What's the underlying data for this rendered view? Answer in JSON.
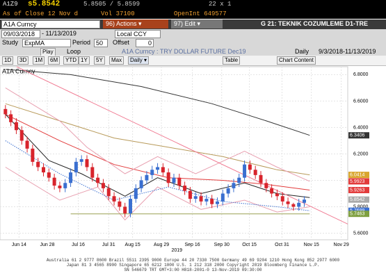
{
  "header": {
    "ticker": "A1Z9",
    "last": "s5.8542",
    "bid_ask": "5.8505 / 5.8599",
    "size": "22 x 1",
    "as_of": "As of Close 12 Nov d",
    "vol": "Vol 37100",
    "open_int": "OpenInt 649577"
  },
  "toolbar": {
    "security": "A1A Curncy",
    "actions": "96) Actions ▾",
    "edit": "97) Edit ▾",
    "page_title": "G 21: TEKNIK COZUMLEME D1-TRE",
    "start_date": "09/03/2018",
    "end_date": "- 11/13/2019",
    "currency": "Local CCY",
    "study_label": "Study",
    "study": "ExpMA",
    "period_label": "Period",
    "period": "50",
    "offset_label": "Offset",
    "offset": "0",
    "play": "Play",
    "loop": "Loop",
    "chart_name": "A1A Curncy : TRY DOLLAR FUTURE Dec19",
    "frequency": "Daily",
    "range": "9/3/2018-11/13/2019",
    "periods": [
      "1D",
      "3D",
      "1M",
      "6M",
      "YTD",
      "1Y",
      "5Y",
      "Max"
    ],
    "period_select": "Daily ▾",
    "table": "Table",
    "chart_content": "Chart Content"
  },
  "chart_data": {
    "type": "candlestick",
    "title": "A1A Curncy",
    "year_label": "2019",
    "up_color": "#3a6fd0",
    "down_color": "#d8242c",
    "open": [
      6.54,
      6.5,
      6.44,
      6.38,
      6.3,
      6.24,
      6.14,
      6.1,
      6.06,
      6.02,
      5.96,
      5.94,
      5.98,
      6.06,
      6.14,
      6.16,
      6.1,
      6.02,
      5.98,
      5.94,
      5.88,
      5.84,
      5.8,
      5.75,
      5.86,
      5.94,
      6.0,
      6.04,
      6.08,
      6.1,
      6.06,
      5.98,
      6.02,
      5.96,
      5.92,
      5.86,
      5.88,
      5.84,
      5.86,
      5.82,
      5.84,
      5.9,
      5.94,
      5.98,
      6.02,
      6.12,
      6.08,
      6.04,
      5.98,
      5.94,
      5.9,
      5.88,
      5.84,
      5.82,
      5.8,
      5.83
    ],
    "high": [
      6.57,
      6.53,
      6.47,
      6.41,
      6.33,
      6.27,
      6.17,
      6.13,
      6.09,
      6.05,
      5.99,
      6.01,
      6.09,
      6.17,
      6.19,
      6.19,
      6.13,
      6.05,
      6.01,
      5.97,
      5.91,
      5.87,
      5.83,
      5.89,
      5.97,
      6.03,
      6.07,
      6.11,
      6.13,
      6.13,
      6.09,
      6.05,
      6.05,
      5.99,
      5.95,
      5.91,
      5.91,
      5.89,
      5.89,
      5.87,
      5.93,
      5.97,
      6.01,
      6.05,
      6.15,
      6.15,
      6.11,
      6.07,
      6.01,
      5.97,
      5.93,
      5.91,
      5.87,
      5.83,
      5.86,
      5.88
    ],
    "low": [
      6.47,
      6.41,
      6.35,
      6.27,
      6.21,
      6.11,
      6.07,
      6.03,
      5.99,
      5.93,
      5.91,
      5.91,
      5.95,
      6.03,
      6.11,
      6.07,
      5.99,
      5.95,
      5.91,
      5.85,
      5.81,
      5.77,
      5.72,
      5.72,
      5.83,
      5.91,
      5.97,
      6.01,
      6.05,
      6.03,
      5.95,
      5.95,
      5.93,
      5.89,
      5.83,
      5.83,
      5.81,
      5.81,
      5.79,
      5.79,
      5.81,
      5.87,
      5.91,
      5.95,
      5.99,
      6.05,
      6.01,
      5.95,
      5.91,
      5.87,
      5.85,
      5.81,
      5.79,
      5.77,
      5.77,
      5.8
    ],
    "close": [
      6.5,
      6.44,
      6.38,
      6.3,
      6.24,
      6.14,
      6.1,
      6.06,
      6.02,
      5.96,
      5.94,
      5.98,
      6.06,
      6.14,
      6.16,
      6.1,
      6.02,
      5.98,
      5.94,
      5.88,
      5.84,
      5.8,
      5.75,
      5.86,
      5.94,
      6.0,
      6.04,
      6.08,
      6.1,
      6.06,
      5.98,
      6.02,
      5.96,
      5.92,
      5.86,
      5.88,
      5.84,
      5.86,
      5.82,
      5.84,
      5.9,
      5.94,
      5.98,
      6.02,
      6.12,
      6.08,
      6.04,
      5.98,
      5.94,
      5.9,
      5.88,
      5.84,
      5.82,
      5.8,
      5.83,
      5.8542
    ],
    "xlim": [
      -1,
      63
    ],
    "xticks": [
      {
        "value": 2.5,
        "label": "Jun 14"
      },
      {
        "value": 7.7,
        "label": "Jun 28"
      },
      {
        "value": 13.4,
        "label": "Jul 16"
      },
      {
        "value": 19,
        "label": "Jul 31"
      },
      {
        "value": 23.4,
        "label": "Aug 15"
      },
      {
        "value": 28.7,
        "label": "Aug 29"
      },
      {
        "value": 34.4,
        "label": "Sep 16"
      },
      {
        "value": 39.8,
        "label": "Sep 30"
      },
      {
        "value": 44.9,
        "label": "Oct 15"
      },
      {
        "value": 50.9,
        "label": "Oct 31"
      },
      {
        "value": 56.3,
        "label": "Nov 15"
      },
      {
        "value": 61.8,
        "label": "Nov 29"
      }
    ],
    "ylim": [
      5.55,
      6.86
    ],
    "yticks": [
      {
        "value": 5.6,
        "label": "5.6000"
      },
      {
        "value": 5.8,
        "label": "5.8000"
      },
      {
        "value": 6.0,
        "label": "6.0000"
      },
      {
        "value": 6.2,
        "label": "6.2000"
      },
      {
        "value": 6.4,
        "label": "6.4000"
      },
      {
        "value": 6.6,
        "label": "6.6000"
      },
      {
        "value": 6.8,
        "label": "6.8000"
      }
    ],
    "grid": true,
    "series": [
      {
        "color": "#333333",
        "x": [
          0,
          12,
          25,
          38,
          48,
          56
        ],
        "values": [
          6.84,
          6.8,
          6.71,
          6.58,
          6.45,
          6.3406
        ]
      },
      {
        "color": "#b89a5a",
        "x": [
          0,
          10,
          20,
          30,
          40,
          50,
          56
        ],
        "values": [
          6.58,
          6.45,
          6.32,
          6.25,
          6.18,
          6.08,
          6.0414
        ]
      },
      {
        "color": "#e23b3b",
        "x": [
          0,
          10,
          20,
          30,
          40,
          48,
          56
        ],
        "values": [
          6.5,
          6.3,
          6.12,
          6.02,
          6.0,
          5.97,
          5.9263
        ]
      },
      {
        "color": "#e8a0b0",
        "x": [
          0,
          10,
          15,
          22,
          28,
          35,
          44,
          50,
          56
        ],
        "values": [
          6.7,
          6.45,
          6.25,
          6.05,
          6.18,
          6.05,
          6.22,
          6.1,
          5.9923
        ]
      },
      {
        "color": "#e8a0b0",
        "x": [
          0,
          10,
          17,
          22,
          28,
          36,
          44,
          50,
          56
        ],
        "values": [
          6.1,
          5.85,
          5.95,
          5.7,
          5.95,
          5.78,
          5.85,
          5.76,
          5.8
        ]
      },
      {
        "color": "#222222",
        "x": [
          0,
          8,
          14,
          22,
          28,
          36,
          44,
          50,
          56
        ],
        "values": [
          6.5,
          6.15,
          6.05,
          5.88,
          6.02,
          5.9,
          5.98,
          5.9,
          5.87
        ]
      },
      {
        "color": "#3a6fd0",
        "dash": true,
        "x": [
          0,
          10,
          20,
          30,
          40,
          50,
          56
        ],
        "values": [
          6.3,
          6.05,
          5.85,
          5.95,
          5.84,
          5.8,
          5.7699
        ]
      },
      {
        "color": "#9aa052",
        "x": [
          12,
          56
        ],
        "values": [
          5.7463,
          5.7463
        ]
      },
      {
        "color": "#f07890",
        "x": [
          -1,
          65
        ],
        "values": [
          6.92,
          5.63
        ]
      }
    ],
    "price_labels": [
      6.3406,
      6.0414,
      5.9923,
      5.9263,
      5.8542,
      5.7699,
      5.7463
    ],
    "price_label_colors": [
      "#333333",
      "#d9a62e",
      "#e23b3b",
      "#e23b3b",
      "#aaaaaa",
      "#3a6fd0",
      "#7fa040"
    ]
  },
  "footer": {
    "lines": [
      "Australia 61 2 9777 8600 Brazil 5511 2395 9000 Europe 44 20 7330 7500 Germany 49 69 9204 1210 Hong Kong 852 2977 6000",
      "Japan 81 3 4565 8900      Singapore 65 6212 1000      U.S. 1 212 318 2000      Copyright 2019 Bloomberg Finance L.P.",
      "SN 546679 TRT  GMT+3:00 H818-2001-0 13-Nov-2019 09:30:00"
    ]
  }
}
